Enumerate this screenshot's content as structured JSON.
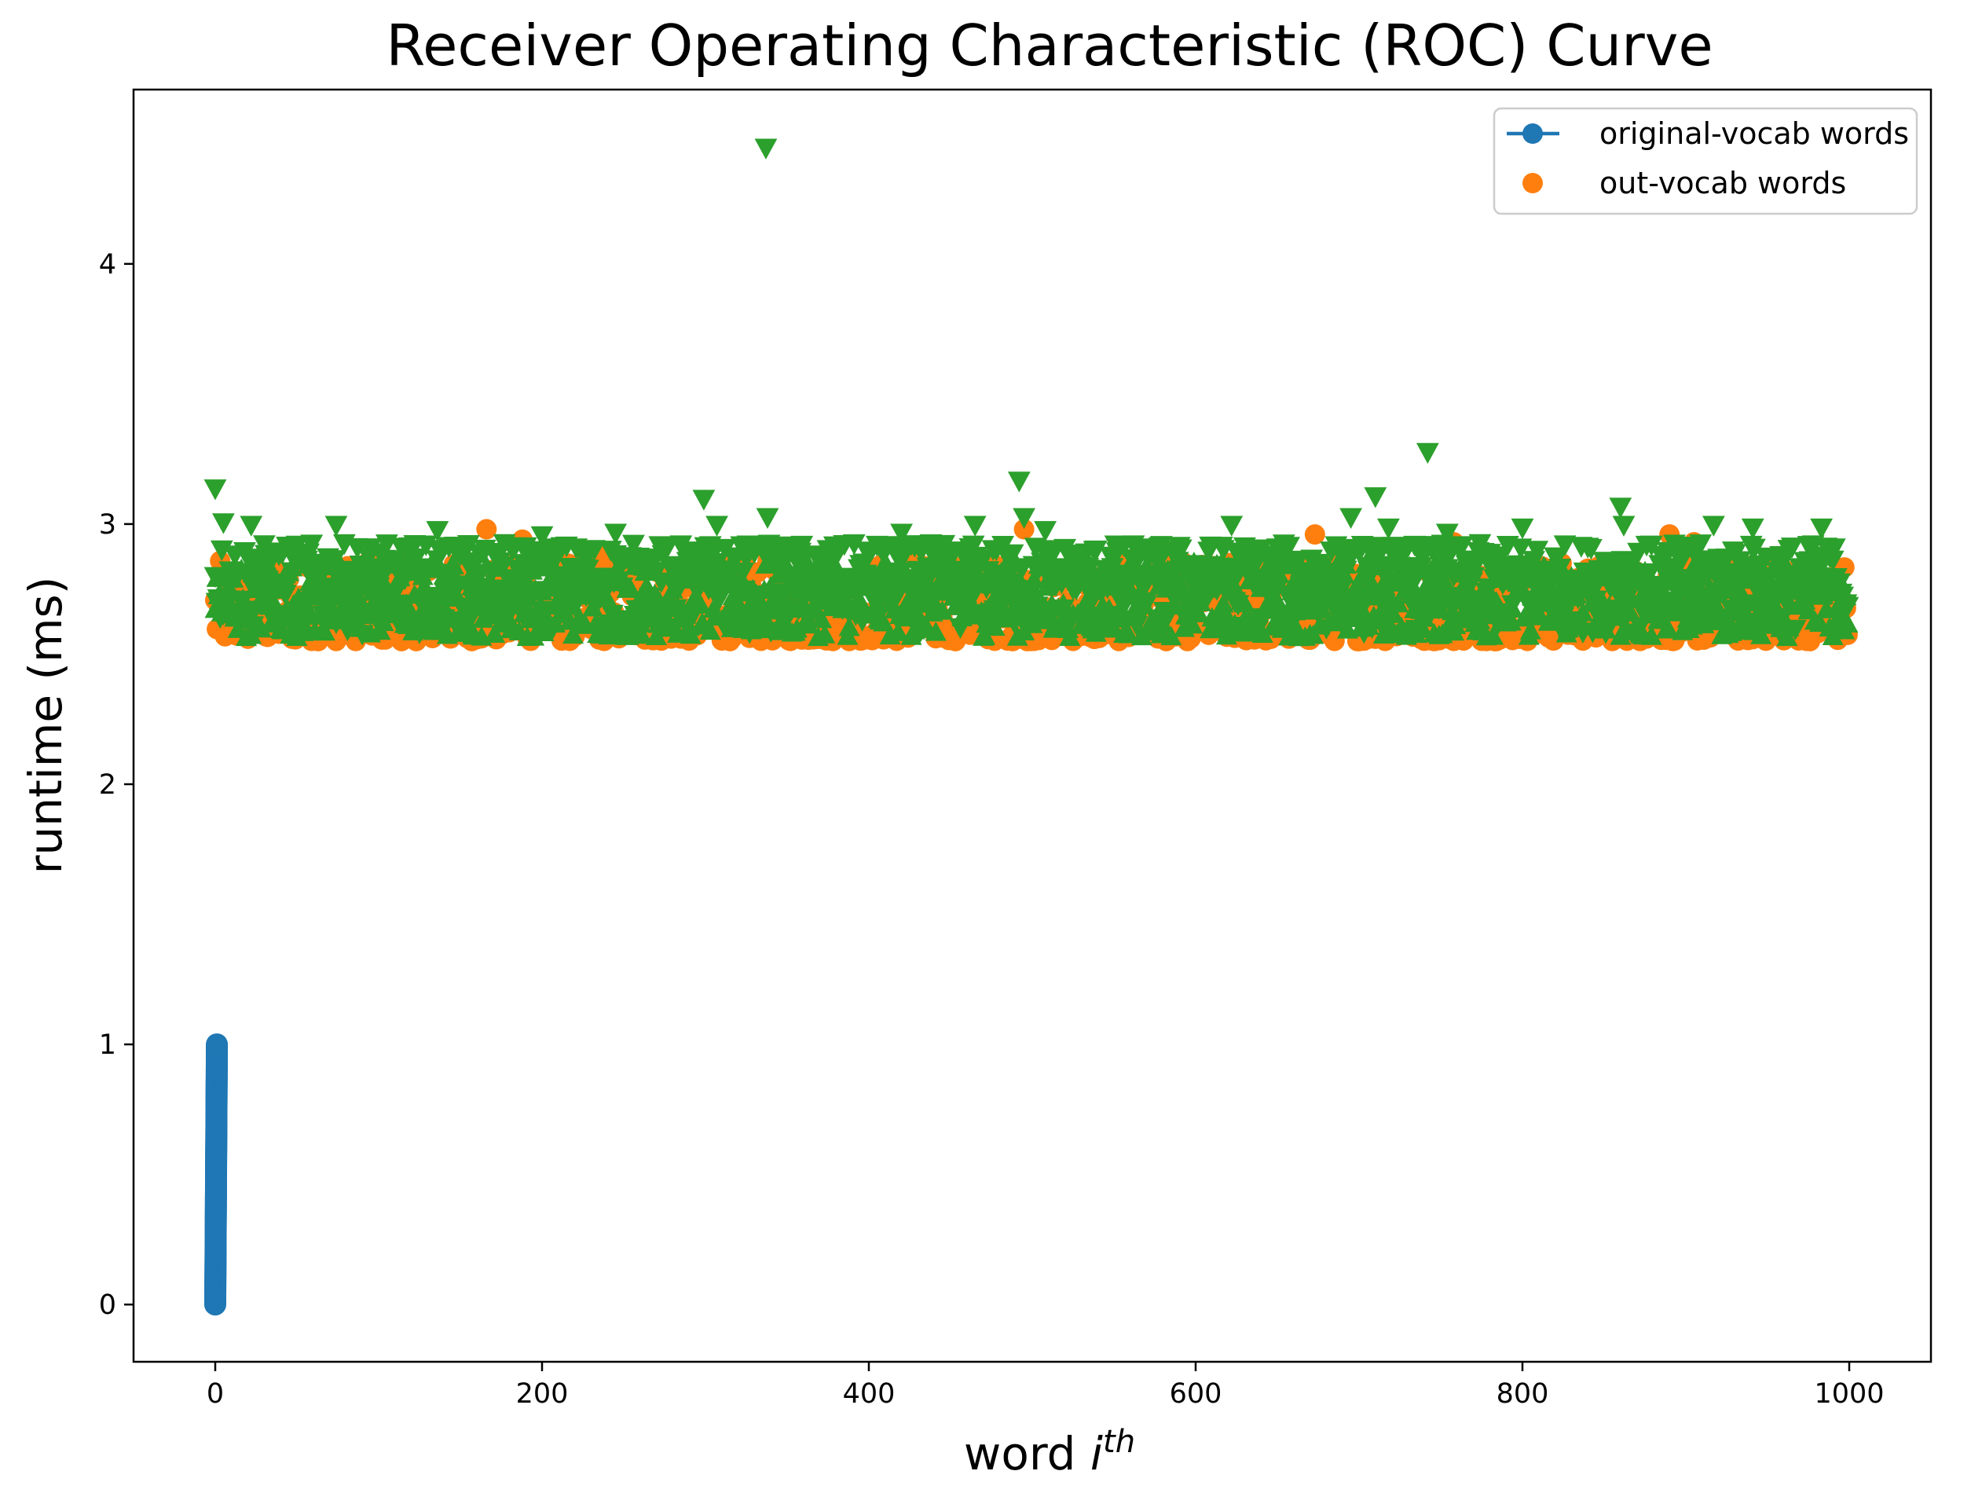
{
  "chart_data": {
    "type": "scatter",
    "title": "Receiver Operating Characteristic (ROC) Curve",
    "xlabel_base": "word ",
    "xlabel_italic": "i",
    "xlabel_sup": "th",
    "ylabel": "runtime (ms)",
    "xlim": [
      -50,
      1050
    ],
    "ylim": [
      -0.22,
      4.67
    ],
    "xticks": [
      0,
      200,
      400,
      600,
      800,
      1000
    ],
    "yticks": [
      0,
      1,
      2,
      3,
      4
    ],
    "legend_position": "top-right",
    "colors": {
      "original": "#1f77b4",
      "out": "#ff7f0e",
      "triangles": "#2ca02c"
    },
    "series": [
      {
        "name": "original-vocab words",
        "marker": "circle-line",
        "color": "#1f77b4",
        "x_range": [
          0,
          1
        ],
        "y_range": [
          0.0,
          1.0
        ],
        "count": 1000
      },
      {
        "name": "out-vocab words",
        "marker": "circle",
        "color": "#ff7f0e",
        "x_range": [
          0,
          999
        ],
        "y_range": [
          2.55,
          2.86
        ],
        "count": 1000,
        "outliers": [
          {
            "x": 166,
            "y": 2.98
          },
          {
            "x": 188,
            "y": 2.94
          },
          {
            "x": 235,
            "y": 2.88
          },
          {
            "x": 335,
            "y": 2.91
          },
          {
            "x": 425,
            "y": 2.88
          },
          {
            "x": 495,
            "y": 2.98
          },
          {
            "x": 673,
            "y": 2.96
          },
          {
            "x": 758,
            "y": 2.93
          },
          {
            "x": 890,
            "y": 2.96
          },
          {
            "x": 905,
            "y": 2.93
          }
        ]
      },
      {
        "name": "",
        "marker": "triangle-up",
        "color": "#2ca02c",
        "x_range": [
          0,
          999
        ],
        "y_range": [
          2.56,
          2.85
        ],
        "count": 1000
      },
      {
        "name": "",
        "marker": "triangle-down",
        "color": "#2ca02c",
        "x_range": [
          0,
          999
        ],
        "y_range": [
          2.58,
          2.93
        ],
        "count": 1000,
        "outliers": [
          {
            "x": 0,
            "y": 3.14
          },
          {
            "x": 5,
            "y": 3.01
          },
          {
            "x": 22,
            "y": 3.0
          },
          {
            "x": 74,
            "y": 3.0
          },
          {
            "x": 136,
            "y": 2.98
          },
          {
            "x": 200,
            "y": 2.96
          },
          {
            "x": 245,
            "y": 2.97
          },
          {
            "x": 299,
            "y": 3.1
          },
          {
            "x": 307,
            "y": 3.0
          },
          {
            "x": 337,
            "y": 4.45
          },
          {
            "x": 338,
            "y": 3.03
          },
          {
            "x": 420,
            "y": 2.97
          },
          {
            "x": 465,
            "y": 3.0
          },
          {
            "x": 492,
            "y": 3.17
          },
          {
            "x": 495,
            "y": 3.03
          },
          {
            "x": 508,
            "y": 2.98
          },
          {
            "x": 622,
            "y": 3.0
          },
          {
            "x": 695,
            "y": 3.03
          },
          {
            "x": 710,
            "y": 3.11
          },
          {
            "x": 718,
            "y": 2.99
          },
          {
            "x": 742,
            "y": 3.28
          },
          {
            "x": 754,
            "y": 2.97
          },
          {
            "x": 800,
            "y": 2.99
          },
          {
            "x": 860,
            "y": 3.07
          },
          {
            "x": 862,
            "y": 3.0
          },
          {
            "x": 900,
            "y": 2.92
          },
          {
            "x": 917,
            "y": 3.0
          },
          {
            "x": 941,
            "y": 2.99
          },
          {
            "x": 983,
            "y": 2.99
          }
        ]
      }
    ]
  }
}
